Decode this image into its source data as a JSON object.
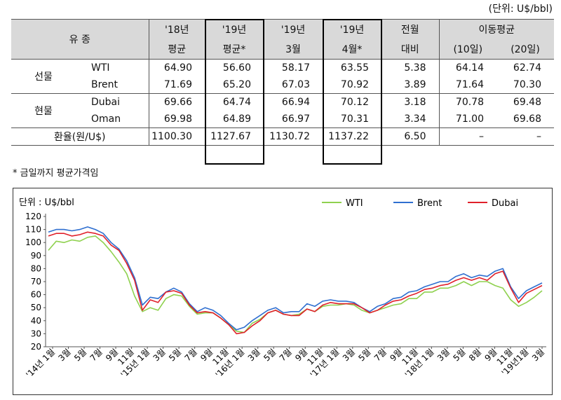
{
  "table": {
    "unit": "(단위: U$/bbl)",
    "headers": {
      "oiltype": "유 종",
      "c1": [
        "'18년",
        "평균"
      ],
      "c2": [
        "'19년",
        "평균*"
      ],
      "c3": [
        "'19년",
        "3월"
      ],
      "c4": [
        "'19년",
        "4월*"
      ],
      "c5": [
        "전월",
        "대비"
      ],
      "c6": "이동평균",
      "c6a": "(10일)",
      "c6b": "(20일)"
    },
    "groups": [
      {
        "name": "선물",
        "rows": [
          {
            "label": "WTI",
            "values": [
              "64.90",
              "56.60",
              "58.17",
              "63.55",
              "5.38",
              "64.14",
              "62.74"
            ]
          },
          {
            "label": "Brent",
            "values": [
              "71.69",
              "65.20",
              "67.03",
              "70.92",
              "3.89",
              "71.64",
              "70.30"
            ]
          }
        ]
      },
      {
        "name": "현물",
        "rows": [
          {
            "label": "Dubai",
            "values": [
              "69.66",
              "64.74",
              "66.94",
              "70.12",
              "3.18",
              "70.78",
              "69.48"
            ]
          },
          {
            "label": "Oman",
            "values": [
              "69.98",
              "64.89",
              "66.97",
              "70.31",
              "3.34",
              "71.00",
              "69.68"
            ]
          }
        ]
      }
    ],
    "fx": {
      "label": "환율(원/U$)",
      "values": [
        "1100.30",
        "1127.67",
        "1130.72",
        "1137.22",
        "6.50",
        "–",
        "–"
      ]
    },
    "note": "* 금일까지 평균가격임"
  },
  "chart_data": {
    "type": "line",
    "unit_label": "단위 : U$/bbl",
    "ylim": [
      20,
      120
    ],
    "yticks": [
      20,
      30,
      40,
      50,
      60,
      70,
      80,
      90,
      100,
      110,
      120
    ],
    "xticks": [
      "'14년 1월",
      "3월",
      "5월",
      "7월",
      "9월",
      "11월",
      "'15년 1월",
      "3월",
      "5월",
      "7월",
      "9월",
      "11월",
      "'16년 1월",
      "3월",
      "5월",
      "7월",
      "9월",
      "11월",
      "'17년 1월",
      "3월",
      "5월",
      "7월",
      "9월",
      "11월",
      "'18년 1월",
      "3월",
      "5월",
      "8월",
      "9월",
      "11월",
      "'19년1월",
      "3월"
    ],
    "grid": false,
    "legend_position": "top-right",
    "x": [
      0,
      1,
      2,
      3,
      4,
      5,
      6,
      7,
      8,
      9,
      10,
      11,
      12,
      13,
      14,
      15,
      16,
      17,
      18,
      19,
      20,
      21,
      22,
      23,
      24,
      25,
      26,
      27,
      28,
      29,
      30,
      31,
      32,
      33,
      34,
      35,
      36,
      37,
      38,
      39,
      40,
      41,
      42,
      43,
      44,
      45,
      46,
      47,
      48,
      49,
      50,
      51,
      52,
      53,
      54,
      55,
      56,
      57,
      58,
      59,
      60,
      61,
      62,
      63
    ],
    "series": [
      {
        "name": "WTI",
        "color": "#8fd14f",
        "values": [
          94,
          101,
          100,
          102,
          101,
          104,
          105,
          100,
          93,
          85,
          76,
          59,
          47,
          50,
          48,
          57,
          60,
          59,
          51,
          45,
          46,
          46,
          42,
          37,
          32,
          31,
          38,
          41,
          46,
          48,
          45,
          44,
          45,
          49,
          47,
          51,
          52,
          52,
          53,
          52,
          48,
          46,
          48,
          50,
          52,
          53,
          57,
          57,
          62,
          62,
          65,
          65,
          67,
          70,
          67,
          70,
          70,
          67,
          65,
          56,
          51,
          54,
          58,
          63
        ]
      },
      {
        "name": "Brent",
        "color": "#2f6fd0",
        "values": [
          108,
          110,
          110,
          109,
          110,
          112,
          110,
          107,
          100,
          95,
          86,
          73,
          52,
          58,
          57,
          62,
          65,
          62,
          53,
          47,
          50,
          48,
          44,
          38,
          33,
          35,
          40,
          44,
          48,
          50,
          46,
          47,
          47,
          53,
          51,
          55,
          56,
          55,
          55,
          54,
          50,
          47,
          51,
          53,
          57,
          58,
          62,
          63,
          66,
          68,
          70,
          70,
          74,
          76,
          73,
          75,
          74,
          78,
          80,
          66,
          57,
          63,
          66,
          69
        ]
      },
      {
        "name": "Dubai",
        "color": "#e0202a",
        "values": [
          105,
          107,
          107,
          105,
          106,
          108,
          107,
          105,
          98,
          94,
          84,
          71,
          48,
          56,
          54,
          62,
          63,
          61,
          52,
          46,
          47,
          46,
          42,
          37,
          30,
          31,
          36,
          40,
          46,
          48,
          45,
          44,
          44,
          49,
          47,
          52,
          54,
          53,
          53,
          53,
          50,
          46,
          48,
          52,
          55,
          56,
          59,
          61,
          64,
          65,
          67,
          68,
          71,
          73,
          71,
          73,
          71,
          76,
          78,
          65,
          54,
          61,
          64,
          67
        ]
      }
    ]
  }
}
